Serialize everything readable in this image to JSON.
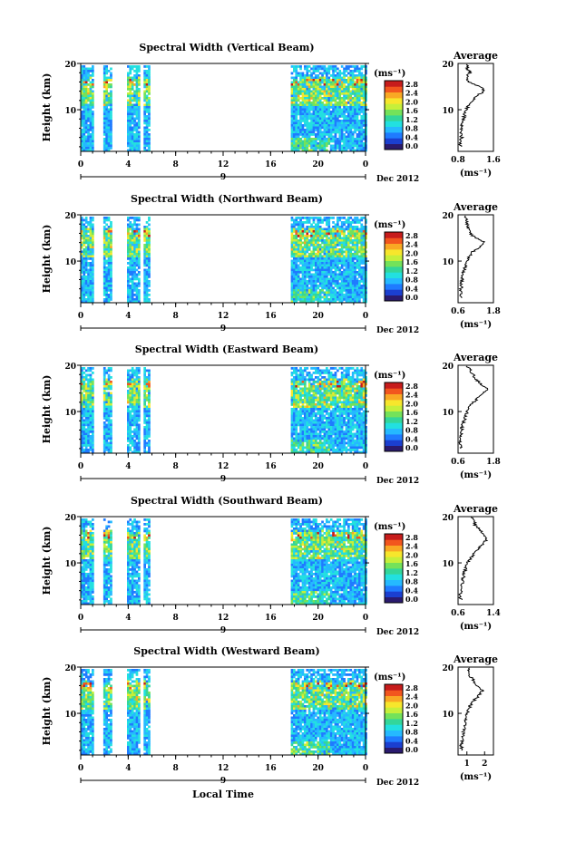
{
  "figure": {
    "xlabel": "Local Time",
    "ylabel": "Height (km)",
    "date_label": "Dec 2012",
    "day_label": "9",
    "colorbar_unit": "(ms⁻¹)",
    "avg_title": "Average",
    "avg_xlabel": "(ms⁻¹)"
  },
  "chart_data": [
    {
      "type": "heatmap",
      "title": "Spectral Width (Vertical Beam)",
      "xlim": [
        0,
        24
      ],
      "ylim": [
        1,
        20
      ],
      "xticks": [
        "0",
        "4",
        "8",
        "12",
        "16",
        "20",
        "0"
      ],
      "yticks": [
        "20",
        "10"
      ],
      "data_intervals_h": [
        [
          0,
          1.1
        ],
        [
          1.9,
          2.6
        ],
        [
          3.9,
          4.9
        ],
        [
          5.3,
          5.7
        ],
        [
          17.7,
          24
        ]
      ],
      "colorbar_ticks": [
        "2.8",
        "2.4",
        "2.0",
        "1.6",
        "1.2",
        "0.8",
        "0.4",
        "0.0"
      ],
      "avg_xlim": [
        0.8,
        1.6
      ],
      "avg_xticks": [
        "0.8",
        "1.6"
      ],
      "avg_profile": [
        [
          2,
          0.86
        ],
        [
          3,
          0.84
        ],
        [
          4,
          0.88
        ],
        [
          5,
          0.85
        ],
        [
          6,
          0.87
        ],
        [
          7,
          0.9
        ],
        [
          8,
          0.93
        ],
        [
          9,
          0.95
        ],
        [
          10,
          0.98
        ],
        [
          11,
          1.05
        ],
        [
          12,
          1.12
        ],
        [
          13,
          1.22
        ],
        [
          14,
          1.4
        ],
        [
          15,
          1.3
        ],
        [
          16,
          1.05
        ],
        [
          17,
          0.98
        ],
        [
          18,
          1.08
        ],
        [
          19,
          1.0
        ],
        [
          20,
          1.02
        ]
      ]
    },
    {
      "type": "heatmap",
      "title": "Spectral Width (Northward Beam)",
      "xlim": [
        0,
        24
      ],
      "ylim": [
        1,
        20
      ],
      "xticks": [
        "0",
        "4",
        "8",
        "12",
        "16",
        "20",
        "0"
      ],
      "yticks": [
        "20",
        "10"
      ],
      "data_intervals_h": [
        [
          0,
          1.1
        ],
        [
          1.9,
          2.6
        ],
        [
          3.9,
          4.9
        ],
        [
          5.3,
          5.7
        ],
        [
          17.7,
          24
        ]
      ],
      "colorbar_ticks": [
        "2.8",
        "2.4",
        "2.0",
        "1.6",
        "1.2",
        "0.8",
        "0.4",
        "0.0"
      ],
      "avg_xlim": [
        0.6,
        1.8
      ],
      "avg_xticks": [
        "0.6",
        "1.8"
      ],
      "avg_profile": [
        [
          2,
          0.72
        ],
        [
          3,
          0.68
        ],
        [
          4,
          0.7
        ],
        [
          5,
          0.72
        ],
        [
          6,
          0.74
        ],
        [
          7,
          0.77
        ],
        [
          8,
          0.8
        ],
        [
          9,
          0.84
        ],
        [
          10,
          0.9
        ],
        [
          11,
          0.98
        ],
        [
          12,
          1.1
        ],
        [
          13,
          1.35
        ],
        [
          14,
          1.5
        ],
        [
          15,
          1.2
        ],
        [
          16,
          1.0
        ],
        [
          17,
          0.95
        ],
        [
          18,
          0.9
        ],
        [
          19,
          0.88
        ],
        [
          20,
          0.85
        ]
      ]
    },
    {
      "type": "heatmap",
      "title": "Spectral Width (Eastward Beam)",
      "xlim": [
        0,
        24
      ],
      "ylim": [
        1,
        20
      ],
      "xticks": [
        "0",
        "4",
        "8",
        "12",
        "16",
        "20",
        "0"
      ],
      "yticks": [
        "20",
        "10"
      ],
      "data_intervals_h": [
        [
          0,
          1.1
        ],
        [
          1.9,
          2.6
        ],
        [
          3.9,
          4.9
        ],
        [
          5.3,
          5.7
        ],
        [
          17.7,
          24
        ]
      ],
      "colorbar_ticks": [
        "2.8",
        "2.4",
        "2.0",
        "1.6",
        "1.2",
        "0.8",
        "0.4",
        "0.0"
      ],
      "avg_xlim": [
        0.6,
        1.8
      ],
      "avg_xticks": [
        "0.6",
        "1.8"
      ],
      "avg_profile": [
        [
          2,
          0.7
        ],
        [
          3,
          0.66
        ],
        [
          4,
          0.68
        ],
        [
          5,
          0.7
        ],
        [
          6,
          0.72
        ],
        [
          7,
          0.75
        ],
        [
          8,
          0.8
        ],
        [
          9,
          0.85
        ],
        [
          10,
          0.92
        ],
        [
          11,
          1.0
        ],
        [
          12,
          1.12
        ],
        [
          13,
          1.3
        ],
        [
          14,
          1.45
        ],
        [
          15,
          1.6
        ],
        [
          16,
          1.35
        ],
        [
          17,
          1.2
        ],
        [
          18,
          1.1
        ],
        [
          19,
          1.0
        ],
        [
          20,
          0.9
        ]
      ]
    },
    {
      "type": "heatmap",
      "title": "Spectral Width (Southward Beam)",
      "xlim": [
        0,
        24
      ],
      "ylim": [
        1,
        20
      ],
      "xticks": [
        "0",
        "4",
        "8",
        "12",
        "16",
        "20",
        "0"
      ],
      "yticks": [
        "20",
        "10"
      ],
      "data_intervals_h": [
        [
          0,
          1.1
        ],
        [
          1.9,
          2.6
        ],
        [
          3.9,
          4.9
        ],
        [
          5.3,
          5.7
        ],
        [
          17.7,
          24
        ]
      ],
      "colorbar_ticks": [
        "2.8",
        "2.4",
        "2.0",
        "1.6",
        "1.2",
        "0.8",
        "0.4",
        "0.0"
      ],
      "avg_xlim": [
        0.6,
        1.4
      ],
      "avg_xticks": [
        "0.6",
        "1.4"
      ],
      "avg_profile": [
        [
          2,
          0.66
        ],
        [
          3,
          0.64
        ],
        [
          4,
          0.66
        ],
        [
          5,
          0.68
        ],
        [
          6,
          0.7
        ],
        [
          7,
          0.72
        ],
        [
          8,
          0.75
        ],
        [
          9,
          0.78
        ],
        [
          10,
          0.82
        ],
        [
          11,
          0.88
        ],
        [
          12,
          0.95
        ],
        [
          13,
          1.05
        ],
        [
          14,
          1.15
        ],
        [
          15,
          1.25
        ],
        [
          16,
          1.2
        ],
        [
          17,
          1.1
        ],
        [
          18,
          1.0
        ],
        [
          19,
          0.95
        ],
        [
          20,
          0.9
        ]
      ]
    },
    {
      "type": "heatmap",
      "title": "Spectral Width (Westward Beam)",
      "xlim": [
        0,
        24
      ],
      "ylim": [
        1,
        20
      ],
      "xticks": [
        "0",
        "4",
        "8",
        "12",
        "16",
        "20",
        "0"
      ],
      "yticks": [
        "20",
        "10"
      ],
      "data_intervals_h": [
        [
          0,
          1.1
        ],
        [
          1.9,
          2.6
        ],
        [
          3.9,
          4.9
        ],
        [
          5.3,
          5.7
        ],
        [
          17.7,
          24
        ]
      ],
      "colorbar_ticks": [
        "2.8",
        "2.4",
        "2.0",
        "1.6",
        "1.2",
        "0.8",
        "0.4",
        "0.0"
      ],
      "avg_xlim": [
        0.5,
        2.5
      ],
      "avg_xticks": [
        "1",
        "2"
      ],
      "avg_profile": [
        [
          2,
          0.7
        ],
        [
          3,
          0.68
        ],
        [
          4,
          0.72
        ],
        [
          5,
          0.75
        ],
        [
          6,
          0.8
        ],
        [
          7,
          0.85
        ],
        [
          8,
          0.9
        ],
        [
          9,
          0.95
        ],
        [
          10,
          1.0
        ],
        [
          11,
          1.1
        ],
        [
          12,
          1.25
        ],
        [
          13,
          1.45
        ],
        [
          14,
          1.7
        ],
        [
          15,
          1.9
        ],
        [
          16,
          1.6
        ],
        [
          17,
          1.4
        ],
        [
          18,
          1.2
        ],
        [
          19,
          1.1
        ],
        [
          20,
          1.05
        ]
      ]
    }
  ]
}
